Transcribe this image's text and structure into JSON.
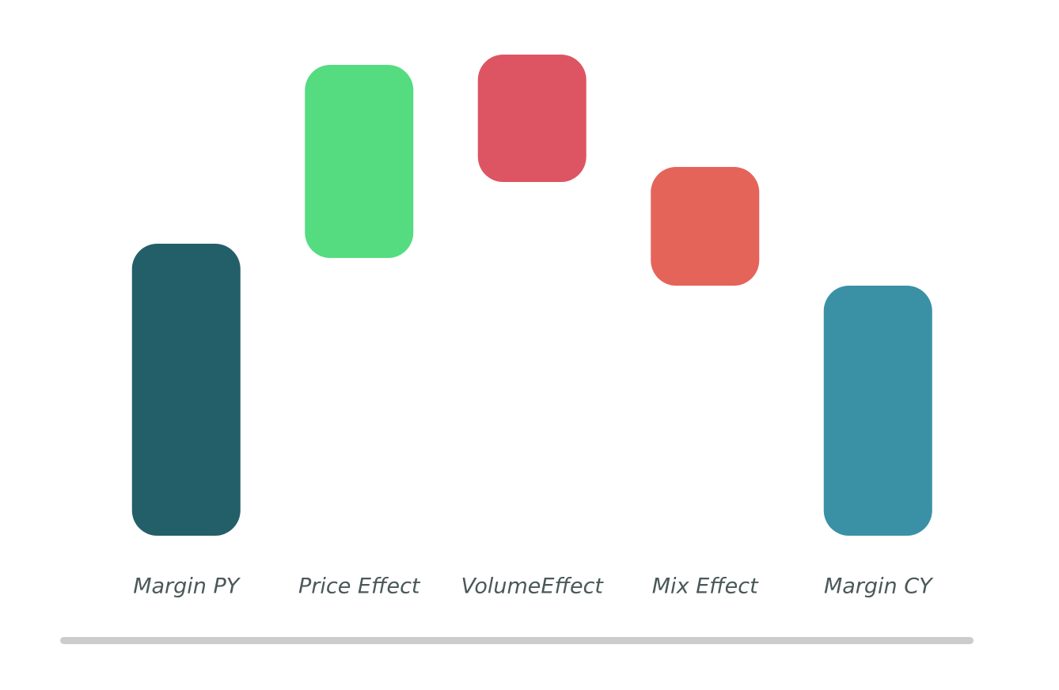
{
  "chart_data": {
    "type": "waterfall",
    "categories": [
      "Margin PY",
      "Price Effect",
      "VolumeEffect",
      "Mix Effect",
      "Margin CY"
    ],
    "low": [
      0,
      351,
      447,
      316,
      0
    ],
    "high": [
      369,
      595,
      608,
      466,
      316
    ],
    "colors": [
      "#235f69",
      "#55dc80",
      "#dd5562",
      "#e5645a",
      "#3a91a6"
    ]
  }
}
